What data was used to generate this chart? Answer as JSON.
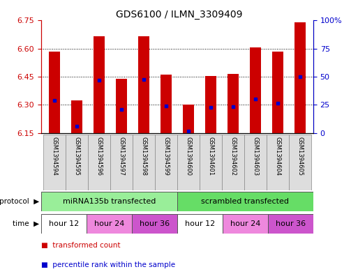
{
  "title": "GDS6100 / ILMN_3309409",
  "samples": [
    "GSM1394594",
    "GSM1394595",
    "GSM1394596",
    "GSM1394597",
    "GSM1394598",
    "GSM1394599",
    "GSM1394600",
    "GSM1394601",
    "GSM1394602",
    "GSM1394603",
    "GSM1394604",
    "GSM1394605"
  ],
  "bar_top": [
    6.585,
    6.325,
    6.665,
    6.44,
    6.665,
    6.46,
    6.3,
    6.455,
    6.465,
    6.605,
    6.585,
    6.74
  ],
  "bar_bottom": 6.15,
  "blue_dot_value": [
    6.325,
    6.185,
    6.43,
    6.275,
    6.435,
    6.295,
    6.16,
    6.285,
    6.29,
    6.33,
    6.31,
    6.45
  ],
  "ylim_left": [
    6.15,
    6.75
  ],
  "ylim_right": [
    0,
    100
  ],
  "yticks_left": [
    6.15,
    6.3,
    6.45,
    6.6,
    6.75
  ],
  "yticks_right": [
    0,
    25,
    50,
    75,
    100
  ],
  "bar_color": "#cc0000",
  "dot_color": "#0000cc",
  "protocol_groups": [
    {
      "label": "miRNA135b transfected",
      "start": 0,
      "end": 6,
      "color": "#99ee99"
    },
    {
      "label": "scrambled transfected",
      "start": 6,
      "end": 12,
      "color": "#66dd66"
    }
  ],
  "time_groups": [
    {
      "label": "hour 12",
      "start": 0,
      "end": 2,
      "color": "#ffffff"
    },
    {
      "label": "hour 24",
      "start": 2,
      "end": 4,
      "color": "#ee88dd"
    },
    {
      "label": "hour 36",
      "start": 4,
      "end": 6,
      "color": "#cc55cc"
    },
    {
      "label": "hour 12",
      "start": 6,
      "end": 8,
      "color": "#ffffff"
    },
    {
      "label": "hour 24",
      "start": 8,
      "end": 10,
      "color": "#ee88dd"
    },
    {
      "label": "hour 36",
      "start": 10,
      "end": 12,
      "color": "#cc55cc"
    }
  ],
  "left_axis_color": "#cc0000",
  "right_axis_color": "#0000cc",
  "bar_color_legend": "#cc0000",
  "dot_color_legend": "#0000cc"
}
